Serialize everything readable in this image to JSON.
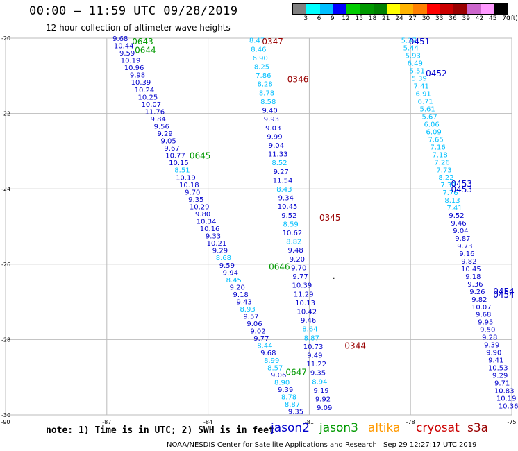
{
  "header": {
    "title": "00:00 — 11:59 UTC 09/28/2019",
    "subtitle": "12 hour collection of altimeter wave heights"
  },
  "scale": {
    "unit_label": "(ft)",
    "ticks": [
      "3",
      "6",
      "9",
      "12",
      "15",
      "18",
      "21",
      "24",
      "27",
      "30",
      "33",
      "36",
      "39",
      "42",
      "45",
      "70"
    ],
    "colors": [
      "#808080",
      "#00ffff",
      "#00bfff",
      "#0000ff",
      "#00cc00",
      "#009900",
      "#008000",
      "#ffff00",
      "#ffb400",
      "#ff8000",
      "#ff0000",
      "#cc0000",
      "#990000",
      "#cc66cc",
      "#ff99ff",
      "#000000"
    ]
  },
  "map": {
    "lon_range": [
      -90,
      -75
    ],
    "lat_range": [
      -30,
      -20
    ],
    "lon_labels": [
      "-90",
      "-87",
      "-84",
      "-81",
      "-78",
      "-75"
    ],
    "lat_labels": [
      "-20",
      "-22",
      "-24",
      "-26",
      "-28",
      "-30"
    ],
    "tracks": [
      {
        "satellite": "jason2",
        "values": [
          "9.68",
          "10.44",
          "9.59",
          "10.19",
          "10.96",
          "9.98",
          "10.39",
          "10.24",
          "10.25",
          "10.07",
          "11.76",
          "9.84",
          "9.56",
          "9.29",
          "9.05",
          "9.67",
          "10.77",
          "10.15",
          "8.51",
          "10.19",
          "10.18",
          "9.70",
          "9.35",
          "10.29",
          "9.80",
          "10.34",
          "10.16",
          "9.33",
          "10.21",
          "9.29",
          "8.68",
          "9.59",
          "9.94",
          "8.45",
          "9.20",
          "9.18",
          "9.43",
          "8.93",
          "9.57",
          "9.06",
          "9.02",
          "9.77",
          "8.44",
          "9.68",
          "8.99",
          "8.57",
          "9.06",
          "8.90",
          "9.39",
          "8.78",
          "8.87",
          "9.35"
        ]
      },
      {
        "satellite": "jason2",
        "values": [
          "8.47",
          "8.46",
          "6.90",
          "8.25",
          "7.86",
          "8.28",
          "8.78",
          "8.58",
          "9.40",
          "9.93",
          "9.03",
          "9.99",
          "9.04",
          "11.33",
          "8.52",
          "9.27",
          "11.54",
          "8.43",
          "9.34",
          "10.45",
          "9.52",
          "8.59",
          "10.62",
          "8.82",
          "9.48",
          "9.20",
          "9.70",
          "9.77",
          "10.39",
          "11.29",
          "10.13",
          "10.42",
          "9.46",
          "8.64",
          "8.87",
          "10.73",
          "9.49",
          "11.22",
          "9.35",
          "8.94",
          "9.19",
          "9.92",
          "9.09"
        ]
      },
      {
        "satellite": "jason2",
        "values": [
          "5.37",
          "5.44",
          "5.93",
          "6.49",
          "5.51",
          "5.39",
          "7.41",
          "6.91",
          "6.71",
          "5.61",
          "5.67",
          "6.06",
          "6.09",
          "7.65",
          "7.16",
          "7.18",
          "7.26",
          "7.73",
          "8.22",
          "7.32",
          "7.76",
          "8.13",
          "7.41",
          "9.52",
          "9.46",
          "9.04",
          "9.87",
          "9.73",
          "9.16",
          "9.82",
          "10.45",
          "9.18",
          "9.36",
          "9.26",
          "9.82",
          "10.07",
          "9.68",
          "9.95",
          "9.50",
          "9.28",
          "9.39",
          "9.90",
          "9.41",
          "10.53",
          "9.29",
          "9.71",
          "10.83",
          "10.19",
          "10.36"
        ]
      }
    ],
    "annotations": [
      {
        "text": "0643",
        "color": "#009900",
        "lon": -86.25,
        "lat": -20.07
      },
      {
        "text": "0644",
        "color": "#009900",
        "lon": -86.17,
        "lat": -20.3
      },
      {
        "text": "0645",
        "color": "#009900",
        "lon": -84.55,
        "lat": -23.1
      },
      {
        "text": "0646",
        "color": "#009900",
        "lon": -82.2,
        "lat": -26.05
      },
      {
        "text": "0647",
        "color": "#009900",
        "lon": -81.7,
        "lat": -28.85
      },
      {
        "text": "0347",
        "color": "#990000",
        "lon": -82.4,
        "lat": -20.07
      },
      {
        "text": "0346",
        "color": "#990000",
        "lon": -81.65,
        "lat": -21.08
      },
      {
        "text": "0345",
        "color": "#990000",
        "lon": -80.7,
        "lat": -24.75
      },
      {
        "text": "0344",
        "color": "#990000",
        "lon": -79.95,
        "lat": -28.15
      },
      {
        "text": "0451",
        "color": "#0000cc",
        "lon": -78.05,
        "lat": -20.07
      },
      {
        "text": "0452",
        "color": "#0000cc",
        "lon": -77.55,
        "lat": -20.92
      },
      {
        "text": "0453",
        "color": "#0000cc",
        "lon": -76.8,
        "lat": -23.85
      },
      {
        "text": "0453",
        "color": "#0000cc",
        "lon": -76.8,
        "lat": -24.0
      },
      {
        "text": "0454",
        "color": "#0000cc",
        "lon": -75.55,
        "lat": -26.7
      },
      {
        "text": "0454",
        "color": "#0000cc",
        "lon": -75.55,
        "lat": -26.8
      }
    ]
  },
  "footer": {
    "note": "note: 1) Time is in UTC; 2) SWH is in feet",
    "satellites": [
      {
        "name": "jason2",
        "color": "#0000cc"
      },
      {
        "name": "jason3",
        "color": "#009900"
      },
      {
        "name": "altika",
        "color": "#ff9900"
      },
      {
        "name": "cryosat",
        "color": "#cc0000"
      },
      {
        "name": "s3a",
        "color": "#990000"
      }
    ],
    "credit": "NOAA/NESDIS Center for Satellite Applications and Research",
    "timestamp": "Sep 29 12:27:17 UTC 2019"
  }
}
